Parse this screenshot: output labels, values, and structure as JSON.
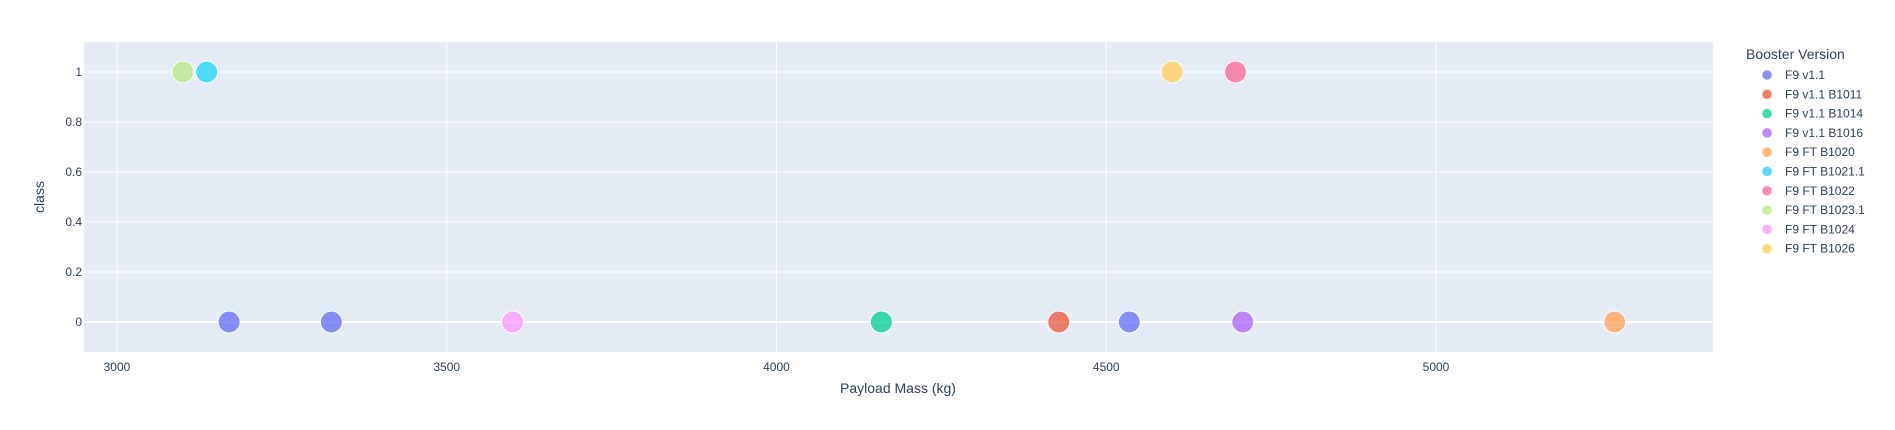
{
  "chart_data": {
    "type": "scatter",
    "title": "",
    "xlabel": "Payload Mass (kg)",
    "ylabel": "class",
    "xlim": [
      2950,
      5420
    ],
    "ylim": [
      -0.12,
      1.12
    ],
    "xticks": [
      3000,
      3500,
      4000,
      4500,
      5000
    ],
    "yticks": [
      0,
      0.2,
      0.4,
      0.6,
      0.8,
      1
    ],
    "grid": true,
    "legend": {
      "title": "Booster Version",
      "placement": "right"
    },
    "series": [
      {
        "name": "F9 v1.1",
        "color": "#636efa",
        "points": [
          {
            "x": 3170,
            "y": 0
          },
          {
            "x": 3325,
            "y": 0
          },
          {
            "x": 4535,
            "y": 0
          }
        ]
      },
      {
        "name": "F9 v1.1 B1011",
        "color": "#EF553B",
        "points": [
          {
            "x": 4428,
            "y": 0
          }
        ]
      },
      {
        "name": "F9 v1.1 B1014",
        "color": "#00cc96",
        "points": [
          {
            "x": 4159,
            "y": 0
          }
        ]
      },
      {
        "name": "F9 v1.1 B1016",
        "color": "#ab63fa",
        "points": [
          {
            "x": 4707,
            "y": 0
          }
        ]
      },
      {
        "name": "F9 FT B1020",
        "color": "#FFA15A",
        "points": [
          {
            "x": 5271,
            "y": 0
          }
        ]
      },
      {
        "name": "F9 FT B1021.1",
        "color": "#19d3f3",
        "points": [
          {
            "x": 3136,
            "y": 1
          }
        ]
      },
      {
        "name": "F9 FT B1022",
        "color": "#FF6692",
        "points": [
          {
            "x": 4696,
            "y": 1
          }
        ]
      },
      {
        "name": "F9 FT B1023.1",
        "color": "#B6E880",
        "points": [
          {
            "x": 3100,
            "y": 1
          }
        ]
      },
      {
        "name": "F9 FT B1024",
        "color": "#FF97FF",
        "points": [
          {
            "x": 3600,
            "y": 0
          }
        ]
      },
      {
        "name": "F9 FT B1026",
        "color": "#FECB52",
        "points": [
          {
            "x": 4600,
            "y": 1
          }
        ]
      }
    ]
  }
}
